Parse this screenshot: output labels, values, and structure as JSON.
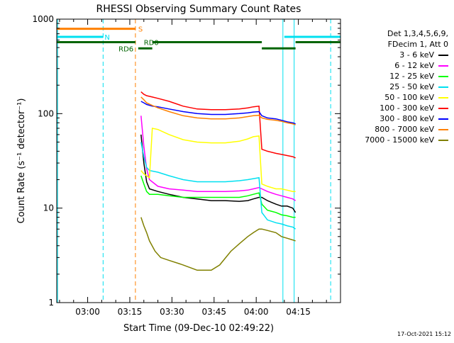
{
  "chart_data": {
    "type": "line",
    "title": "RHESSI Observing Summary Count Rates",
    "xlabel": "Start Time (09-Dec-10 02:49:22)",
    "ylabel": "Count Rate (s⁻¹ detector⁻¹)",
    "yscale": "log",
    "ylim": [
      1,
      1000
    ],
    "xlim_minutes": [
      0,
      101
    ],
    "x_ticks": [
      {
        "m": 11,
        "label": "03:00"
      },
      {
        "m": 26,
        "label": "03:15"
      },
      {
        "m": 41,
        "label": "03:30"
      },
      {
        "m": 56,
        "label": "03:45"
      },
      {
        "m": 71,
        "label": "04:00"
      },
      {
        "m": 86,
        "label": "04:15"
      }
    ],
    "y_ticks": [
      {
        "v": 1,
        "label": "1"
      },
      {
        "v": 10,
        "label": "10"
      },
      {
        "v": 100,
        "label": "100"
      },
      {
        "v": 1000,
        "label": "1000"
      }
    ],
    "flag_bars": [
      {
        "label": "S",
        "color": "#ff8000",
        "y": 790,
        "segments": [
          [
            0,
            28
          ]
        ],
        "label_x": 29
      },
      {
        "label": "N",
        "color": "#00e0f0",
        "y": 650,
        "segments": [
          [
            0,
            16.5
          ],
          [
            81,
            101
          ]
        ],
        "label_x": 17
      },
      {
        "label": "RD0",
        "color": "#006400",
        "y": 570,
        "segments": [
          [
            0,
            28
          ],
          [
            34,
            73
          ],
          [
            85,
            101
          ]
        ],
        "label_x": 31
      },
      {
        "label": "RD6",
        "color": "#006400",
        "y": 490,
        "segments": [
          [
            29,
            34
          ],
          [
            73,
            85
          ]
        ],
        "label_x": 22
      }
    ],
    "vlines": [
      {
        "m": 0.3,
        "color": "#00e0f0",
        "style": "solid"
      },
      {
        "m": 16.5,
        "color": "#00e0f0",
        "style": "dashed"
      },
      {
        "m": 28,
        "color": "#ff8000",
        "style": "dashed"
      },
      {
        "m": 80.5,
        "color": "#00e0f0",
        "style": "solid"
      },
      {
        "m": 84.5,
        "color": "#00e0f0",
        "style": "solid"
      },
      {
        "m": 97.5,
        "color": "#00e0f0",
        "style": "dashed"
      }
    ],
    "series": [
      {
        "name": "3 - 6 keV",
        "color": "#000000",
        "x": [
          30,
          31,
          32,
          33,
          36,
          40,
          45,
          50,
          55,
          60,
          65,
          68,
          70,
          72,
          73,
          75,
          78,
          80,
          82,
          84,
          85
        ],
        "y": [
          60,
          30,
          19,
          16,
          15,
          14,
          13,
          12.5,
          12,
          12,
          11.8,
          12,
          12.5,
          13,
          13,
          12,
          11,
          10.5,
          10.5,
          10,
          9
        ]
      },
      {
        "name": "6 - 12 keV",
        "color": "#ff00ff",
        "x": [
          30,
          31,
          32,
          33,
          36,
          40,
          45,
          50,
          55,
          60,
          65,
          68,
          70,
          72,
          73,
          75,
          78,
          80,
          82,
          84,
          85
        ],
        "y": [
          95,
          45,
          26,
          20,
          17,
          16,
          15.5,
          15,
          15,
          15,
          15.2,
          15.5,
          16,
          16.5,
          16,
          15,
          14,
          13.5,
          13,
          12.5,
          12
        ]
      },
      {
        "name": "12 - 25 keV",
        "color": "#00ff00",
        "x": [
          30,
          31,
          32,
          33,
          36,
          40,
          45,
          50,
          55,
          60,
          65,
          68,
          70,
          72,
          73,
          75,
          78,
          80,
          82,
          84,
          85
        ],
        "y": [
          22,
          18,
          15,
          14,
          14,
          13.5,
          13,
          13,
          13,
          13,
          13,
          13.5,
          14,
          14.5,
          11,
          9.5,
          9,
          8.5,
          8.3,
          8,
          8
        ]
      },
      {
        "name": "25 - 50 keV",
        "color": "#00e0f0",
        "x": [
          30,
          31,
          32,
          33,
          36,
          40,
          45,
          50,
          55,
          60,
          65,
          68,
          70,
          72,
          73,
          75,
          78,
          80,
          82,
          84,
          85
        ],
        "y": [
          50,
          35,
          27,
          25,
          24,
          22,
          20,
          19,
          19,
          19,
          19.5,
          20,
          20.5,
          21,
          9,
          7.5,
          7,
          6.8,
          6.5,
          6.3,
          6
        ]
      },
      {
        "name": "50 - 100 keV",
        "color": "#ffff00",
        "x": [
          30,
          31,
          32,
          33,
          34,
          36,
          40,
          45,
          50,
          55,
          60,
          65,
          68,
          70,
          72,
          73,
          75,
          78,
          80,
          82,
          84,
          85
        ],
        "y": [
          25,
          23,
          22,
          21,
          70,
          68,
          60,
          53,
          50,
          49,
          49,
          51,
          54,
          57,
          58,
          18,
          17,
          16,
          16,
          15.5,
          15,
          15
        ]
      },
      {
        "name": "100 - 300 keV",
        "color": "#ff0000",
        "x": [
          30,
          31,
          32,
          34,
          36,
          40,
          45,
          50,
          55,
          60,
          65,
          68,
          70,
          72,
          73,
          75,
          78,
          80,
          82,
          84,
          85
        ],
        "y": [
          170,
          160,
          155,
          150,
          145,
          135,
          120,
          112,
          110,
          110,
          112,
          115,
          118,
          120,
          42,
          40,
          38,
          37,
          36,
          35,
          34
        ]
      },
      {
        "name": "300 - 800 keV",
        "color": "#0000ff",
        "x": [
          30,
          31,
          32,
          34,
          36,
          40,
          45,
          50,
          55,
          60,
          65,
          68,
          70,
          72,
          73,
          75,
          78,
          80,
          82,
          84,
          85
        ],
        "y": [
          135,
          130,
          125,
          120,
          118,
          112,
          105,
          100,
          98,
          98,
          100,
          102,
          104,
          105,
          95,
          90,
          88,
          85,
          82,
          80,
          78
        ]
      },
      {
        "name": "800 - 7000 keV",
        "color": "#ff8000",
        "x": [
          30,
          31,
          32,
          34,
          36,
          40,
          45,
          50,
          55,
          60,
          65,
          68,
          70,
          72,
          73,
          75,
          78,
          80,
          82,
          84,
          85
        ],
        "y": [
          150,
          140,
          130,
          122,
          115,
          105,
          95,
          90,
          88,
          88,
          90,
          93,
          95,
          96,
          90,
          87,
          85,
          83,
          80,
          78,
          76
        ]
      },
      {
        "name": "7000 - 15000 keV",
        "color": "#808000",
        "x": [
          30,
          31,
          32,
          33,
          35,
          37,
          40,
          45,
          50,
          55,
          58,
          62,
          65,
          68,
          70,
          72,
          73,
          75,
          78,
          80,
          82,
          84,
          85
        ],
        "y": [
          8,
          6.5,
          5.5,
          4.5,
          3.5,
          3,
          2.8,
          2.5,
          2.2,
          2.2,
          2.5,
          3.5,
          4.2,
          5,
          5.5,
          6,
          6,
          5.8,
          5.5,
          5,
          4.8,
          4.6,
          4.5
        ]
      }
    ]
  },
  "legend": {
    "header_line1": "Det 1,3,4,5,6,9,",
    "header_line2": "FDecim 1, Att 0"
  },
  "timestamp": "17-Oct-2021 15:12"
}
